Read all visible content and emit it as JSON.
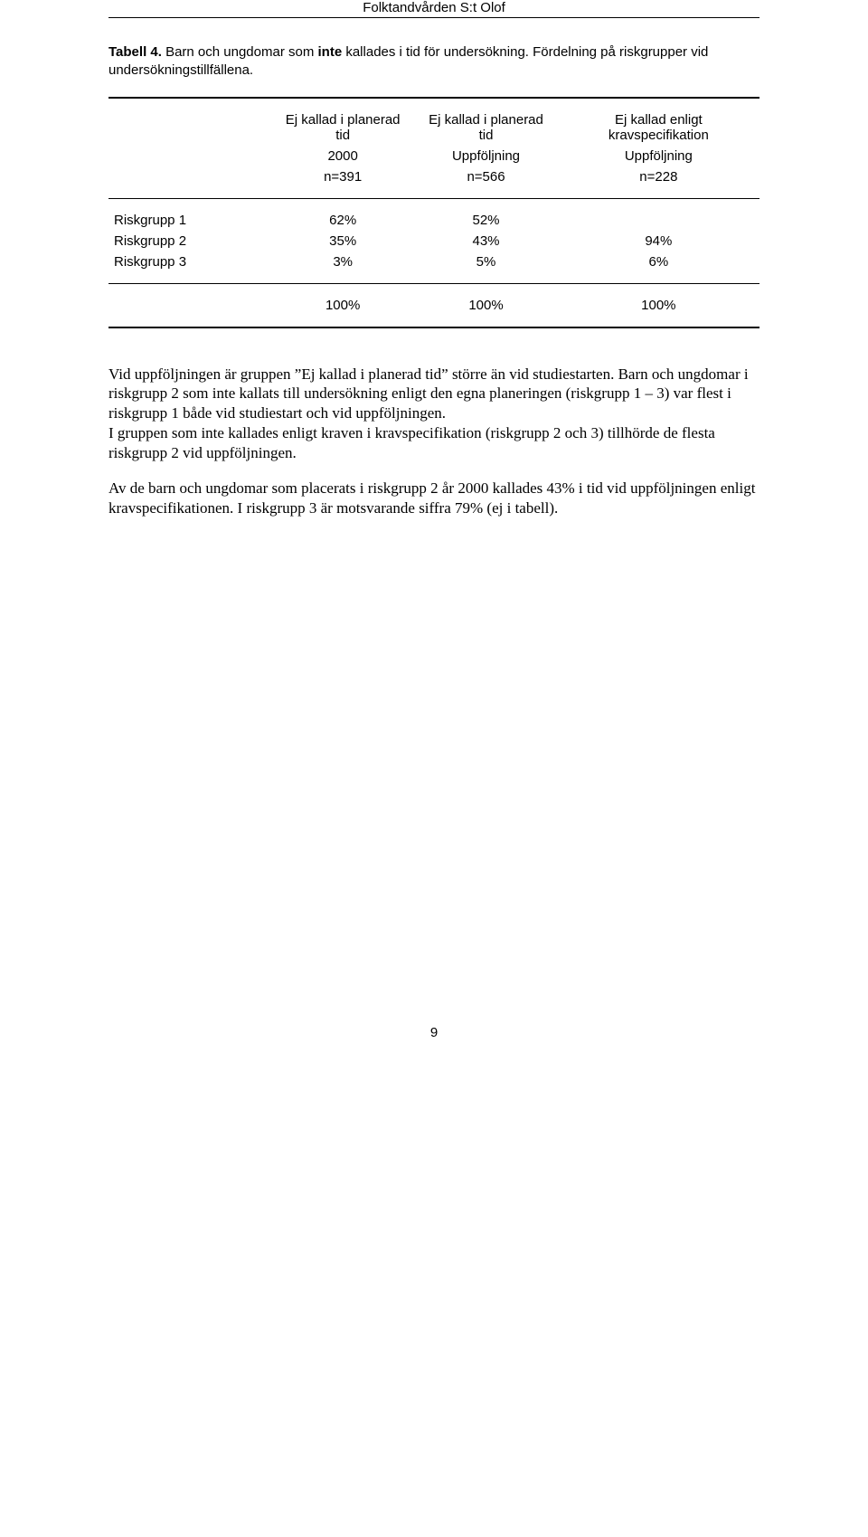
{
  "header": {
    "title": "Folktandvården S:t Olof"
  },
  "table": {
    "caption_prefix": "Tabell 4. ",
    "caption_mid1": "Barn och ungdomar som ",
    "caption_bold": "inte",
    "caption_mid2": " kallades i tid för undersökning. Fördelning på riskgrupper vid undersökningstillfällena.",
    "columns": [
      {
        "h1": "Ej kallad i planerad tid",
        "h2": "2000",
        "h3": "n=391"
      },
      {
        "h1": "Ej kallad i planerad tid",
        "h2": "Uppföljning",
        "h3": "n=566"
      },
      {
        "h1": "Ej kallad enligt kravspecifikation",
        "h2": "Uppföljning",
        "h3": "n=228"
      }
    ],
    "rows": [
      {
        "label": "Riskgrupp 1",
        "c1": "62%",
        "c2": "52%",
        "c3": ""
      },
      {
        "label": "Riskgrupp 2",
        "c1": "35%",
        "c2": "43%",
        "c3": "94%"
      },
      {
        "label": "Riskgrupp 3",
        "c1": "3%",
        "c2": "5%",
        "c3": "6%"
      }
    ],
    "totals": {
      "label": "",
      "c1": "100%",
      "c2": "100%",
      "c3": "100%"
    }
  },
  "paragraphs": {
    "p1": "Vid uppföljningen är gruppen ”Ej kallad i planerad tid” större än vid studiestarten. Barn och ungdomar i riskgrupp 2 som inte kallats till undersökning enligt den egna planeringen (riskgrupp 1 – 3) var flest i riskgrupp 1 både vid studiestart och vid uppföljningen.",
    "p2": "I gruppen som inte kallades enligt kraven i kravspecifikation (riskgrupp 2 och 3) tillhörde de flesta riskgrupp 2 vid uppföljningen.",
    "p3": "Av de barn och ungdomar som placerats i riskgrupp 2 år 2000 kallades 43% i tid vid uppföljningen enligt kravspecifikationen. I riskgrupp 3 är motsvarande siffra 79% (ej i tabell)."
  },
  "page_number": "9"
}
